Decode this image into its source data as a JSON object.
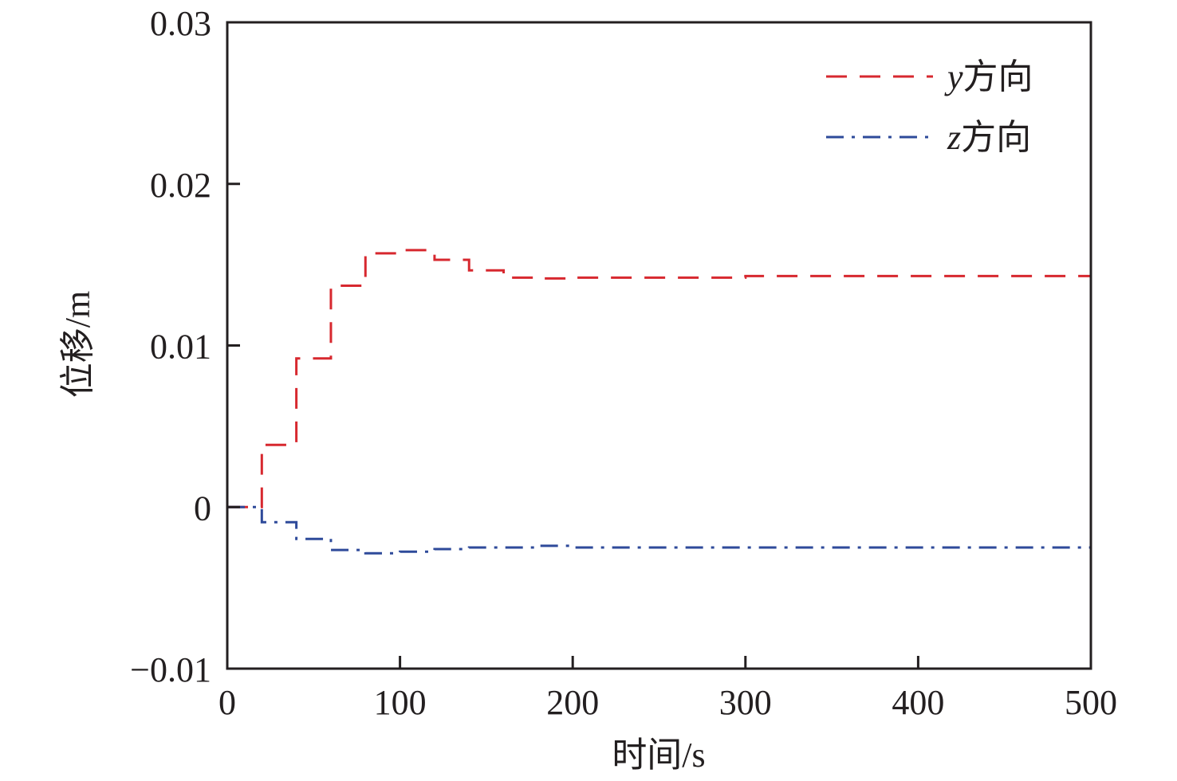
{
  "chart_data": {
    "type": "line",
    "title": "",
    "xlabel": "时间/s",
    "ylabel": "位移/m",
    "xlim": [
      0,
      500
    ],
    "ylim": [
      -0.01,
      0.03
    ],
    "xticks": [
      0,
      100,
      200,
      300,
      400,
      500
    ],
    "xtick_labels": [
      "0",
      "100",
      "200",
      "300",
      "400",
      "500"
    ],
    "yticks": [
      -0.01,
      0,
      0.01,
      0.02,
      0.03
    ],
    "ytick_labels": [
      "−0.01",
      "0",
      "0.01",
      "0.02",
      "0.03"
    ],
    "grid": false,
    "legend_position": "top-right",
    "step": "post",
    "x": [
      0,
      20,
      40,
      60,
      80,
      100,
      120,
      140,
      160,
      180,
      200,
      300,
      500
    ],
    "series": [
      {
        "name": "y方向",
        "var": "y",
        "suffix": "方向",
        "color": "#d7282f",
        "style": "dashed",
        "values": [
          0,
          0.00385,
          0.0092,
          0.0137,
          0.0157,
          0.0159,
          0.0153,
          0.01465,
          0.0142,
          0.01415,
          0.0142,
          0.0143,
          0.0143
        ]
      },
      {
        "name": "z方向",
        "var": "z",
        "suffix": "方向",
        "color": "#2e4a9a",
        "style": "dashdot",
        "values": [
          0,
          -0.00094,
          -0.00197,
          -0.00266,
          -0.00286,
          -0.00276,
          -0.0026,
          -0.0025,
          -0.0025,
          -0.0024,
          -0.0025,
          -0.0025,
          -0.0025
        ]
      }
    ]
  }
}
